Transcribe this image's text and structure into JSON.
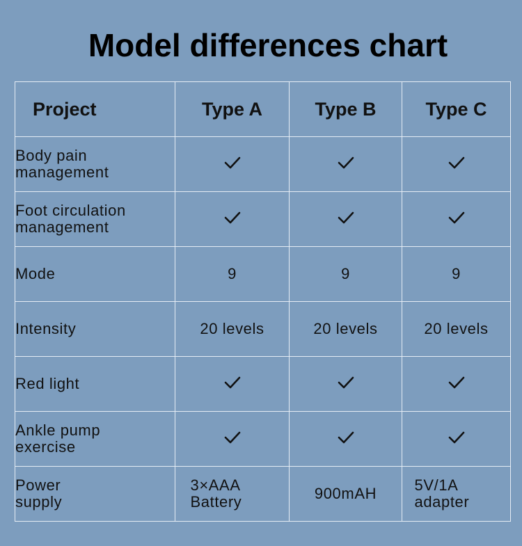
{
  "title": "Model differences chart",
  "table": {
    "headers": [
      "Project",
      "Type A",
      "Type B",
      "Type C"
    ],
    "rows": [
      {
        "label": "Body pain management",
        "values": [
          "check",
          "check",
          "check"
        ]
      },
      {
        "label": "Foot circulation management",
        "values": [
          "check",
          "check",
          "check"
        ]
      },
      {
        "label": "Mode",
        "values": [
          "9",
          "9",
          "9"
        ]
      },
      {
        "label": "Intensity",
        "values": [
          "20 levels",
          "20 levels",
          "20 levels"
        ]
      },
      {
        "label": "Red light",
        "values": [
          "check",
          "check",
          "check"
        ]
      },
      {
        "label": "Ankle pump exercise",
        "values": [
          "check",
          "check",
          "check"
        ]
      },
      {
        "label": "Power supply",
        "values": [
          "3×AAA Battery",
          "900mAH",
          "5V/1A adapter"
        ]
      }
    ]
  },
  "colors": {
    "background": "#7d9dbe",
    "grid_lines": "#e6edf5",
    "text": "#111111"
  },
  "icons": {
    "check": "check-icon"
  }
}
